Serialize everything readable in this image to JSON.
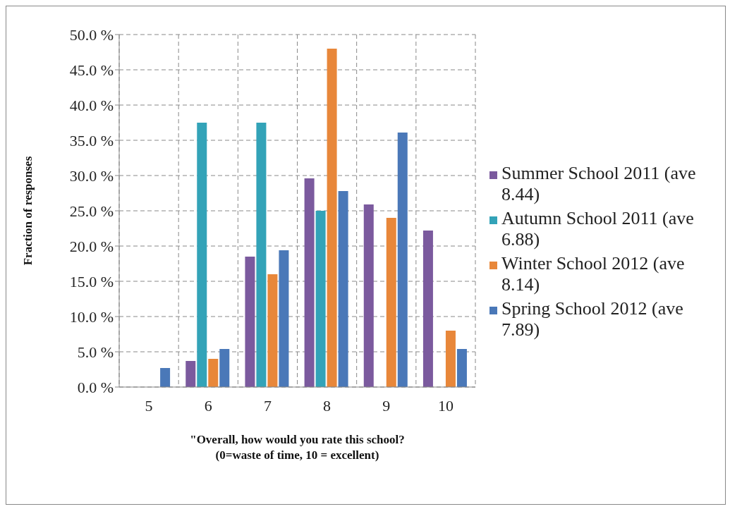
{
  "chart_data": {
    "type": "bar",
    "categories": [
      "5",
      "6",
      "7",
      "8",
      "9",
      "10"
    ],
    "xlabel": "\"Overall, how would you rate this school?\n(0=waste of time, 10 = excellent)",
    "ylabel": "Fraction of responses",
    "series": [
      {
        "name": "Summer School 2011 (ave 8.44)",
        "color": "#7b5a9e",
        "values": [
          null,
          3.7,
          18.5,
          29.6,
          25.9,
          22.2
        ]
      },
      {
        "name": "Autumn School 2011 (ave 6.88)",
        "color": "#33a3b8",
        "values": [
          null,
          37.5,
          37.5,
          25.0,
          null,
          null
        ]
      },
      {
        "name": "Winter School 2012 (ave 8.14)",
        "color": "#e8873a",
        "values": [
          null,
          4.0,
          16.0,
          48.0,
          24.0,
          8.0
        ]
      },
      {
        "name": "Spring School 2012 (ave 7.89)",
        "color": "#4a78b8",
        "values": [
          2.7,
          5.4,
          19.4,
          27.8,
          36.1,
          5.4
        ]
      }
    ],
    "ylim": [
      0,
      50
    ],
    "yticks": [
      {
        "value": 0,
        "label": "0.0 %"
      },
      {
        "value": 5,
        "label": "5.0 %"
      },
      {
        "value": 10,
        "label": "10.0 %"
      },
      {
        "value": 15,
        "label": "15.0 %"
      },
      {
        "value": 20,
        "label": "20.0 %"
      },
      {
        "value": 25,
        "label": "25.0 %"
      },
      {
        "value": 30,
        "label": "30.0 %"
      },
      {
        "value": 35,
        "label": "35.0 %"
      },
      {
        "value": 40,
        "label": "40.0 %"
      },
      {
        "value": 45,
        "label": "45.0 %"
      },
      {
        "value": 50,
        "label": "50.0 %"
      }
    ],
    "grid": true,
    "legend": "right"
  }
}
